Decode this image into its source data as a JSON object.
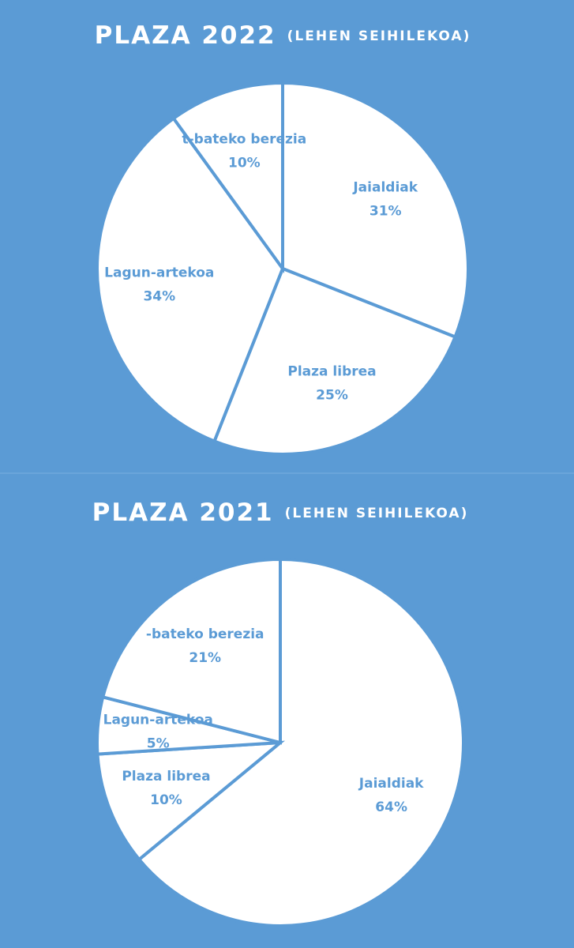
{
  "chart_data": [
    {
      "type": "pie",
      "title": "PLAZA 2022",
      "subtitle": "(LEHEN SEIHILEKOA)",
      "categories": [
        "Jaialdiak",
        "Plaza librea",
        "Lagun-artekoa",
        "t-bateko berezia"
      ],
      "values": [
        31,
        25,
        34,
        10
      ],
      "value_labels": [
        "31%",
        "25%",
        "34%",
        "10%"
      ],
      "color": "#ffffff"
    },
    {
      "type": "pie",
      "title": "PLAZA 2021",
      "subtitle": "(LEHEN SEIHILEKOA)",
      "categories": [
        "Jaialdiak",
        "Plaza librea",
        "Lagun-artekoa",
        "-bateko berezia"
      ],
      "values": [
        64,
        10,
        5,
        21
      ],
      "value_labels": [
        "64%",
        "10%",
        "5%",
        "21%"
      ],
      "color": "#ffffff"
    }
  ]
}
